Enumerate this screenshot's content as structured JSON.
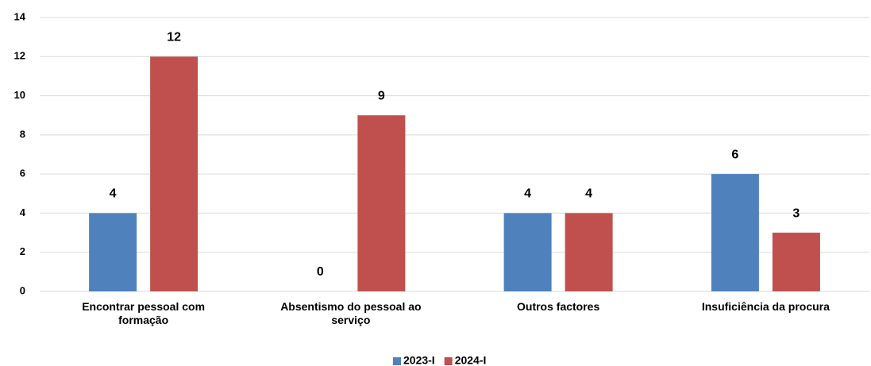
{
  "chart_data": {
    "type": "bar",
    "categories": [
      "Encontrar pessoal com formação",
      "Absentismo do pessoal ao serviço",
      "Outros factores",
      "Insuficiência da procura"
    ],
    "series": [
      {
        "name": "2023-I",
        "color": "#4f81bd",
        "values": [
          4,
          0,
          4,
          6
        ]
      },
      {
        "name": "2024-I",
        "color": "#c0504d",
        "values": [
          12,
          9,
          4,
          3
        ]
      }
    ],
    "ylim": [
      0,
      14
    ],
    "yticks": [
      0,
      2,
      4,
      6,
      8,
      10,
      12,
      14
    ],
    "grid": true,
    "legend": "bottom"
  }
}
